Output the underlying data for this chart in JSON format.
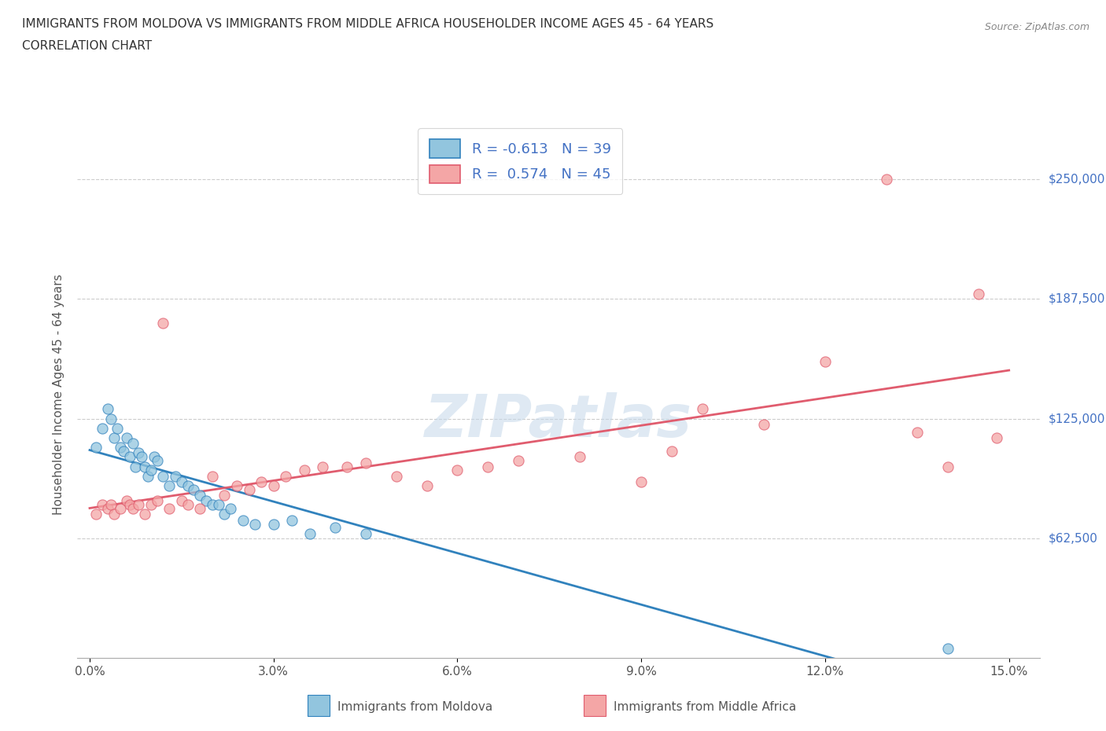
{
  "title_line1": "IMMIGRANTS FROM MOLDOVA VS IMMIGRANTS FROM MIDDLE AFRICA HOUSEHOLDER INCOME AGES 45 - 64 YEARS",
  "title_line2": "CORRELATION CHART",
  "source_text": "Source: ZipAtlas.com",
  "ylabel": "Householder Income Ages 45 - 64 years",
  "xlabel_ticks": [
    "0.0%",
    "3.0%",
    "6.0%",
    "9.0%",
    "12.0%",
    "15.0%"
  ],
  "xlabel_vals": [
    0.0,
    3.0,
    6.0,
    9.0,
    12.0,
    15.0
  ],
  "ytick_labels": [
    "$62,500",
    "$125,000",
    "$187,500",
    "$250,000"
  ],
  "ytick_vals": [
    62500,
    125000,
    187500,
    250000
  ],
  "xlim": [
    -0.2,
    15.5
  ],
  "ylim": [
    0,
    275000
  ],
  "moldova_color": "#92c5de",
  "middle_africa_color": "#f4a6a6",
  "trendline_color_moldova": "#3182bd",
  "trendline_color_africa": "#e05c6e",
  "grid_color": "#cccccc",
  "watermark": "ZIPatlas",
  "legend_label_moldova": "Immigrants from Moldova",
  "legend_label_africa": "Immigrants from Middle Africa",
  "moldova_x": [
    0.1,
    0.2,
    0.3,
    0.35,
    0.4,
    0.45,
    0.5,
    0.55,
    0.6,
    0.65,
    0.7,
    0.75,
    0.8,
    0.85,
    0.9,
    0.95,
    1.0,
    1.05,
    1.1,
    1.2,
    1.3,
    1.4,
    1.5,
    1.6,
    1.7,
    1.8,
    1.9,
    2.0,
    2.1,
    2.2,
    2.3,
    2.5,
    2.7,
    3.0,
    3.3,
    3.6,
    4.0,
    4.5,
    14.0
  ],
  "moldova_y": [
    110000,
    120000,
    130000,
    125000,
    115000,
    120000,
    110000,
    108000,
    115000,
    105000,
    112000,
    100000,
    107000,
    105000,
    100000,
    95000,
    98000,
    105000,
    103000,
    95000,
    90000,
    95000,
    92000,
    90000,
    88000,
    85000,
    82000,
    80000,
    80000,
    75000,
    78000,
    72000,
    70000,
    70000,
    72000,
    65000,
    68000,
    65000,
    5000
  ],
  "middle_africa_x": [
    0.1,
    0.2,
    0.3,
    0.35,
    0.4,
    0.5,
    0.6,
    0.65,
    0.7,
    0.8,
    0.9,
    1.0,
    1.1,
    1.2,
    1.3,
    1.5,
    1.6,
    1.8,
    2.0,
    2.2,
    2.4,
    2.6,
    2.8,
    3.0,
    3.2,
    3.5,
    3.8,
    4.2,
    4.5,
    5.0,
    5.5,
    6.0,
    6.5,
    7.0,
    8.0,
    9.0,
    9.5,
    10.0,
    11.0,
    12.0,
    13.0,
    13.5,
    14.0,
    14.5,
    14.8
  ],
  "middle_africa_y": [
    75000,
    80000,
    78000,
    80000,
    75000,
    78000,
    82000,
    80000,
    78000,
    80000,
    75000,
    80000,
    82000,
    175000,
    78000,
    82000,
    80000,
    78000,
    95000,
    85000,
    90000,
    88000,
    92000,
    90000,
    95000,
    98000,
    100000,
    100000,
    102000,
    95000,
    90000,
    98000,
    100000,
    103000,
    105000,
    92000,
    108000,
    130000,
    122000,
    155000,
    250000,
    118000,
    100000,
    190000,
    115000
  ]
}
